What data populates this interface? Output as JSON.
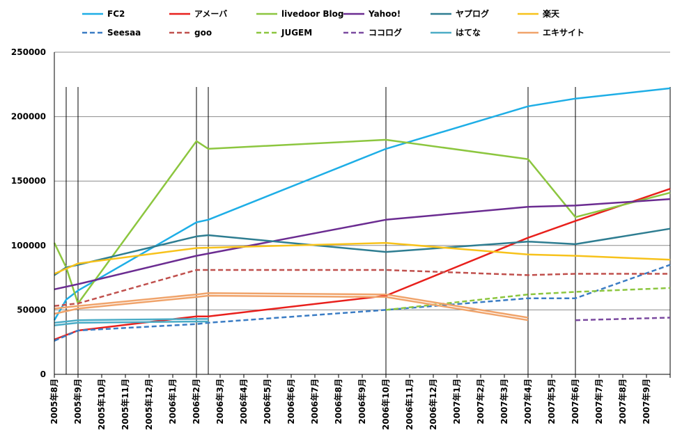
{
  "chart_data": {
    "type": "line",
    "title": "",
    "xlabel": "",
    "ylabel": "",
    "ylim": [
      0,
      250000
    ],
    "yticks": [
      0,
      50000,
      100000,
      150000,
      200000,
      250000
    ],
    "grid": true,
    "legend_position": "top",
    "categories": [
      "2005年8月",
      "2005年9月",
      "2005年10月",
      "2005年11月",
      "2005年12月",
      "2006年1月",
      "2006年2月",
      "2006年3月",
      "2006年4月",
      "2006年5月",
      "2006年6月",
      "2006年7月",
      "2006年8月",
      "2006年9月",
      "2006年10月",
      "2006年11月",
      "2006年12月",
      "2007年1月",
      "2007年2月",
      "2007年3月",
      "2007年4月",
      "2007年5月",
      "2007年6月",
      "2007年7月",
      "2007年8月",
      "2007年9月"
    ],
    "series": [
      {
        "name": "FC2",
        "color": "#1eaee6",
        "dash": false,
        "points": [
          [
            0,
            42000
          ],
          [
            0.5,
            58000
          ],
          [
            1,
            65000
          ],
          [
            6,
            118000
          ],
          [
            6.5,
            120000
          ],
          [
            14,
            175000
          ],
          [
            20,
            208000
          ],
          [
            22,
            214000
          ],
          [
            26,
            222000
          ]
        ]
      },
      {
        "name": "アメーバ",
        "color": "#e8201c",
        "dash": false,
        "points": [
          [
            0,
            27000
          ],
          [
            1,
            34000
          ],
          [
            6,
            45000
          ],
          [
            6.5,
            45000
          ],
          [
            14,
            61000
          ],
          [
            20,
            106000
          ],
          [
            22,
            119000
          ],
          [
            26,
            144000
          ]
        ]
      },
      {
        "name": "livedoor Blog",
        "color": "#8cc63f",
        "dash": false,
        "points": [
          [
            0,
            102000
          ],
          [
            0.5,
            83000
          ],
          [
            1,
            55000
          ],
          [
            6,
            181000
          ],
          [
            6.5,
            175000
          ],
          [
            14,
            182000
          ],
          [
            20,
            167000
          ],
          [
            22,
            122000
          ],
          [
            26,
            141000
          ]
        ]
      },
      {
        "name": "Yahoo!",
        "color": "#6b2c91",
        "dash": false,
        "points": [
          [
            0,
            66000
          ],
          [
            1,
            70000
          ],
          [
            6,
            92000
          ],
          [
            14,
            120000
          ],
          [
            20,
            130000
          ],
          [
            22,
            131000
          ],
          [
            26,
            136000
          ]
        ]
      },
      {
        "name": "ヤプログ",
        "color": "#2e7d91",
        "dash": false,
        "points": [
          [
            0,
            77000
          ],
          [
            0.5,
            83000
          ],
          [
            1,
            85000
          ],
          [
            6,
            107000
          ],
          [
            6.5,
            108000
          ],
          [
            14,
            95000
          ],
          [
            20,
            103000
          ],
          [
            22,
            101000
          ],
          [
            26,
            113000
          ]
        ]
      },
      {
        "name": "楽天",
        "color": "#f7c21b",
        "dash": false,
        "points": [
          [
            0,
            78000
          ],
          [
            1,
            86000
          ],
          [
            6,
            98000
          ],
          [
            14,
            102000
          ],
          [
            20,
            93000
          ],
          [
            22,
            92000
          ],
          [
            26,
            89000
          ]
        ]
      },
      {
        "name": "Seesaa",
        "color": "#3a7cc4",
        "dash": true,
        "points": [
          [
            0,
            26000
          ],
          [
            0.5,
            30000
          ],
          [
            1,
            34000
          ],
          [
            6,
            39000
          ],
          [
            6.5,
            40000
          ],
          [
            14,
            50000
          ],
          [
            20,
            59000
          ],
          [
            22,
            59000
          ],
          [
            26,
            85000
          ]
        ]
      },
      {
        "name": "goo",
        "color": "#c0504d",
        "dash": true,
        "points": [
          [
            0,
            53000
          ],
          [
            1,
            55000
          ],
          [
            6,
            81000
          ],
          [
            6.5,
            81000
          ],
          [
            14,
            81000
          ],
          [
            20,
            77000
          ],
          [
            22,
            78000
          ],
          [
            26,
            78000
          ]
        ]
      },
      {
        "name": "JUGEM",
        "color": "#8cc63f",
        "dash": true,
        "points": [
          [
            14,
            50000
          ],
          [
            20,
            62000
          ],
          [
            22,
            64000
          ],
          [
            26,
            67000
          ]
        ]
      },
      {
        "name": "ココログ",
        "color": "#7b4aa0",
        "dash": true,
        "points": [
          [
            22,
            42000
          ],
          [
            26,
            44000
          ]
        ]
      },
      {
        "name": "はてな",
        "color": "#4bacc6",
        "dash": false,
        "points": [
          [
            0,
            40000
          ],
          [
            1,
            42000
          ],
          [
            6,
            43000
          ],
          [
            6.5,
            43000
          ]
        ]
      },
      {
        "name": "エキサイト",
        "color": "#f0a36a",
        "dash": false,
        "points": [
          [
            0,
            47000
          ],
          [
            1,
            51000
          ],
          [
            6,
            60000
          ],
          [
            6.5,
            61000
          ],
          [
            14,
            60000
          ],
          [
            20,
            42000
          ]
        ]
      },
      {
        "name": "エキサイト",
        "color": "#f0a36a",
        "dash": false,
        "points": [
          [
            0,
            51000
          ],
          [
            1,
            53000
          ],
          [
            6,
            62000
          ],
          [
            6.5,
            63000
          ],
          [
            14,
            62000
          ],
          [
            20,
            44000
          ]
        ]
      },
      {
        "name": "はてな",
        "color": "#4bacc6",
        "dash": false,
        "points": [
          [
            0,
            38000
          ],
          [
            1,
            40000
          ],
          [
            6,
            41000
          ],
          [
            6.5,
            41000
          ]
        ]
      }
    ],
    "legend": [
      {
        "name": "FC2",
        "color": "#1eaee6",
        "dash": false
      },
      {
        "name": "アメーバ",
        "color": "#e8201c",
        "dash": false
      },
      {
        "name": "livedoor Blog",
        "color": "#8cc63f",
        "dash": false
      },
      {
        "name": "Yahoo!",
        "color": "#6b2c91",
        "dash": false
      },
      {
        "name": "ヤプログ",
        "color": "#2e7d91",
        "dash": false
      },
      {
        "name": "楽天",
        "color": "#f7c21b",
        "dash": false
      },
      {
        "name": "Seesaa",
        "color": "#3a7cc4",
        "dash": true
      },
      {
        "name": "goo",
        "color": "#c0504d",
        "dash": true
      },
      {
        "name": "JUGEM",
        "color": "#8cc63f",
        "dash": true
      },
      {
        "name": "ココログ",
        "color": "#7b4aa0",
        "dash": true
      },
      {
        "name": "はてな",
        "color": "#4bacc6",
        "dash": false
      },
      {
        "name": "エキサイト",
        "color": "#f0a36a",
        "dash": false
      }
    ],
    "vertical_markers": [
      0,
      0.5,
      1,
      6,
      6.5,
      14,
      20,
      22,
      26
    ]
  }
}
